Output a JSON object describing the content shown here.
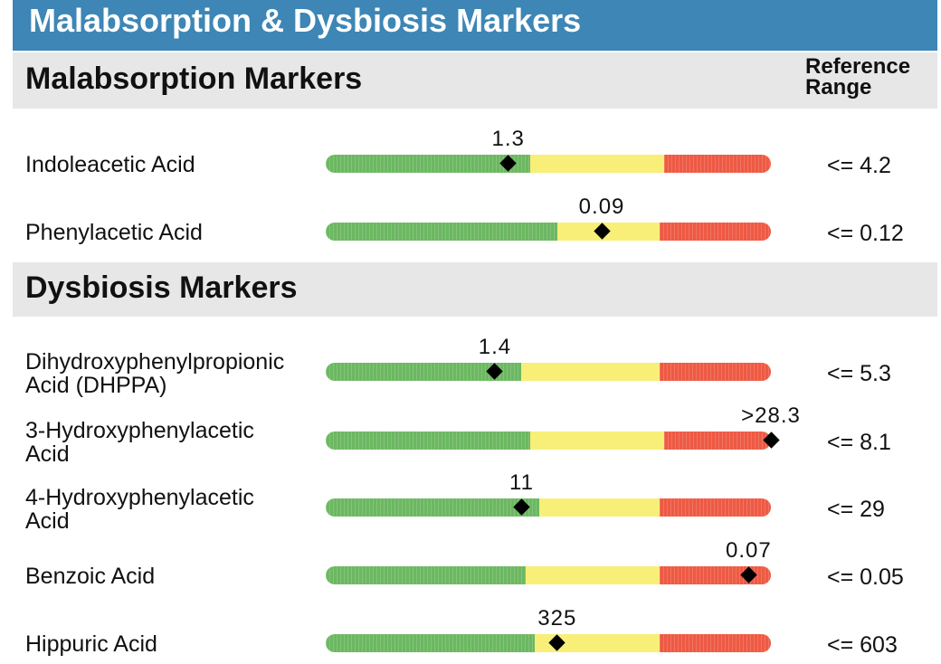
{
  "page_title": "Malabsorption & Dysbiosis Markers",
  "reference_header": "Reference Range",
  "colors": {
    "header": "#3d86b6",
    "section_bg": "#e7e7e7",
    "green": "#6cb862",
    "yellow": "#f8ef78",
    "red": "#ee5a44"
  },
  "sections": [
    {
      "title": "Malabsorption Markers",
      "markers": [
        {
          "name": "Indoleacetic Acid",
          "value": "1.3",
          "reference": "<= 4.2",
          "marker_pos": 0.41,
          "green": 0.46,
          "yellow": 0.3,
          "red": 0.24
        },
        {
          "name": "Phenylacetic Acid",
          "value": "0.09",
          "reference": "<= 0.12",
          "marker_pos": 0.62,
          "green": 0.52,
          "yellow": 0.23,
          "red": 0.25
        }
      ]
    },
    {
      "title": "Dysbiosis Markers",
      "markers": [
        {
          "name": "Dihydroxyphenylpropionic Acid (DHPPA)",
          "value": "1.4",
          "reference": "<= 5.3",
          "marker_pos": 0.38,
          "green": 0.44,
          "yellow": 0.31,
          "red": 0.25
        },
        {
          "name": "3-Hydroxyphenylacetic Acid",
          "value": ">28.3",
          "reference": "<= 8.1",
          "marker_pos": 1.0,
          "green": 0.46,
          "yellow": 0.3,
          "red": 0.24
        },
        {
          "name": "4-Hydroxyphenylacetic Acid",
          "value": "11",
          "reference": "<= 29",
          "marker_pos": 0.44,
          "green": 0.48,
          "yellow": 0.27,
          "red": 0.25
        },
        {
          "name": "Benzoic Acid",
          "value": "0.07",
          "reference": "<= 0.05",
          "marker_pos": 0.95,
          "green": 0.45,
          "yellow": 0.3,
          "red": 0.25
        },
        {
          "name": "Hippuric Acid",
          "value": "325",
          "reference": "<= 603",
          "marker_pos": 0.52,
          "green": 0.47,
          "yellow": 0.28,
          "red": 0.25
        }
      ]
    }
  ]
}
